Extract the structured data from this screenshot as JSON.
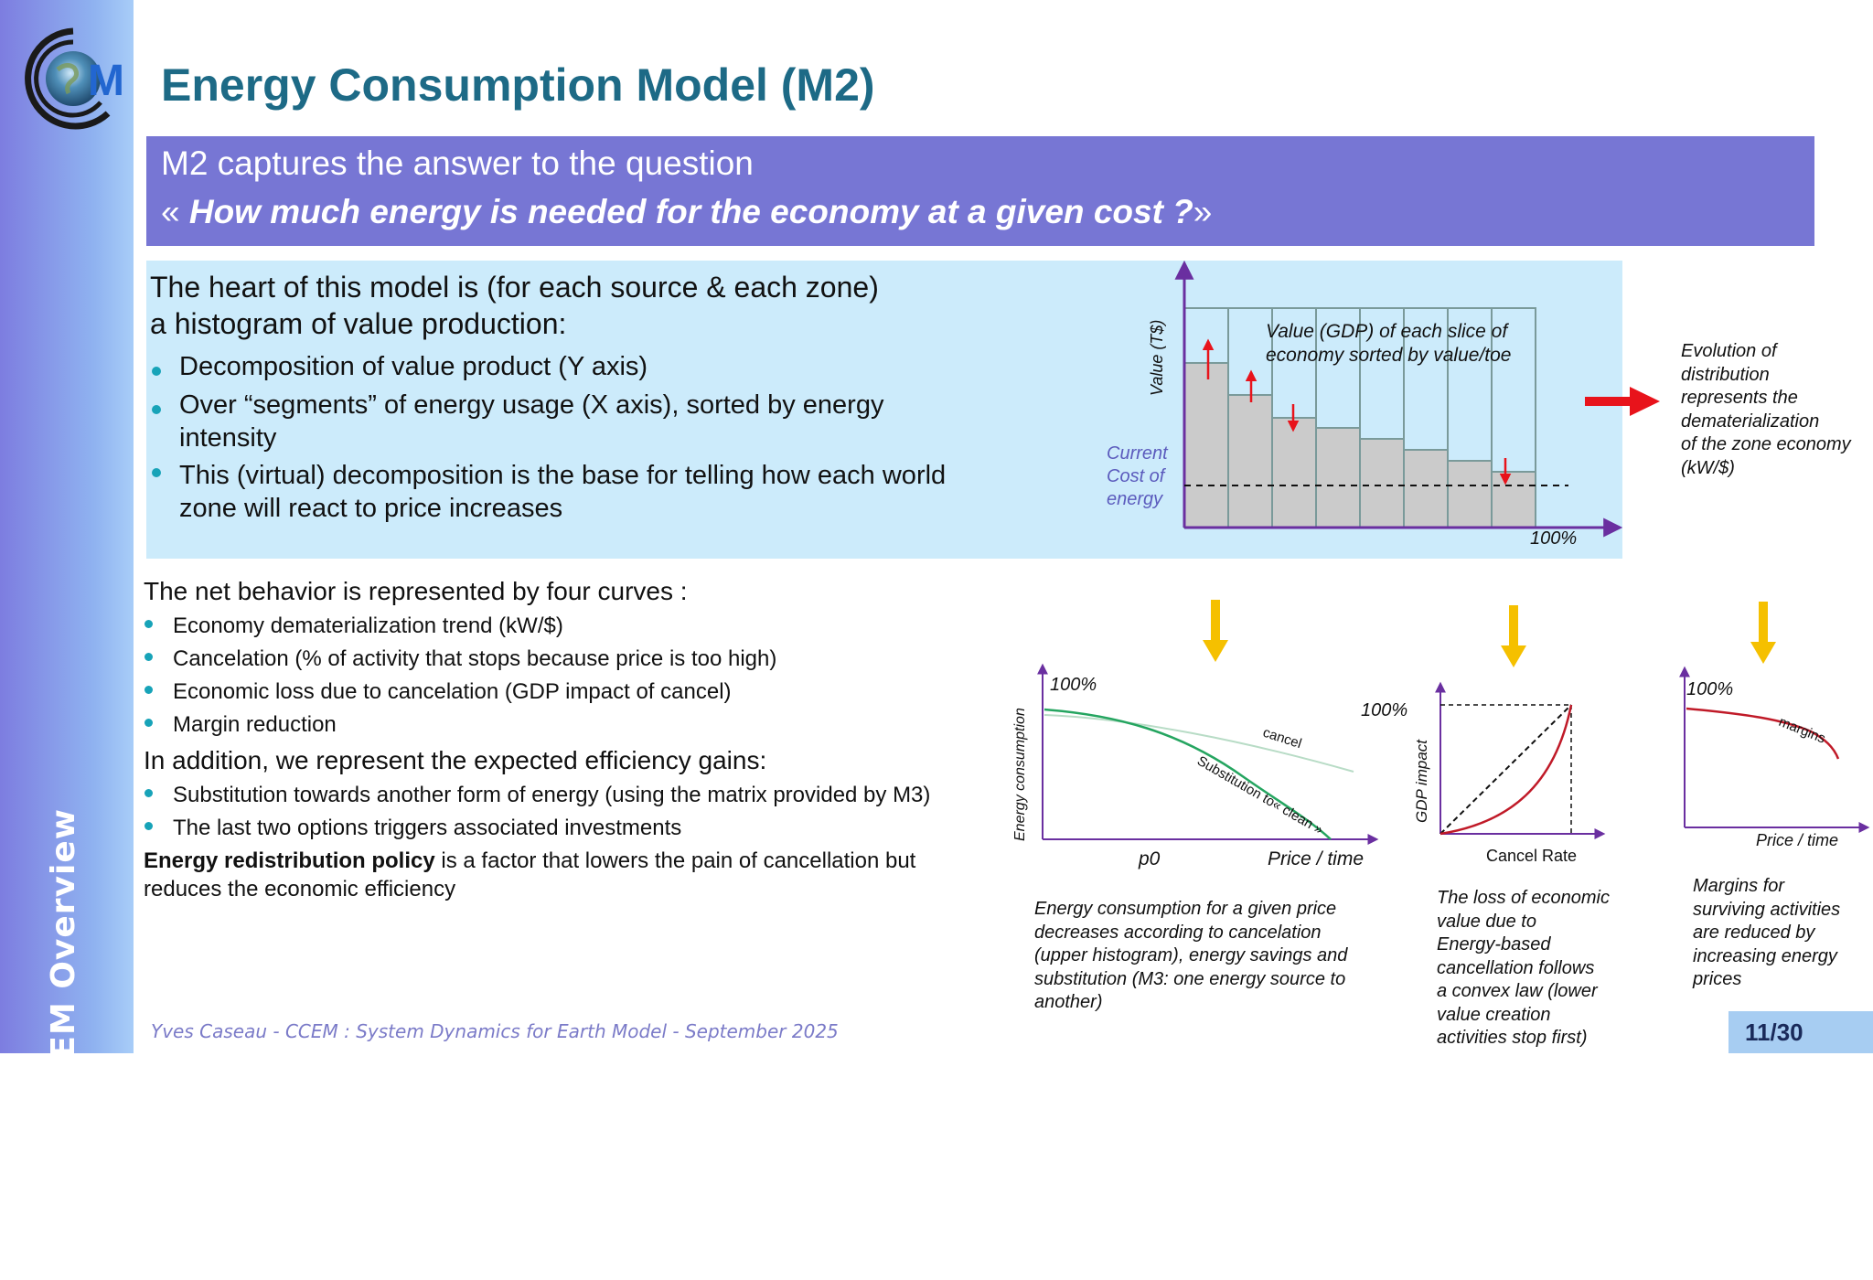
{
  "sidebar": {
    "label": "Part II  - CCEM Overview"
  },
  "logo": {
    "letter": "M"
  },
  "title": "Energy Consumption Model (M2)",
  "banner": {
    "line1": "M2 captures the answer to the question",
    "line2_open": "« ",
    "line2_question": "How much energy is needed for the economy at a given cost ?",
    "line2_close": "»"
  },
  "heart": {
    "line1": "The heart of this model is (for each source & each zone)",
    "line2": "a histogram of value production:",
    "bullets": [
      "Decomposition of value product (Y axis)",
      "Over “segments” of energy usage (X axis), sorted by energy",
      "intensity",
      "This (virtual) decomposition is the base for telling how each world",
      "zone will react to price increases"
    ]
  },
  "histogram": {
    "ylabel": "Value (T$)",
    "annotation_l1": "Value (GDP) of each slice of",
    "annotation_l2": "economy sorted by value/toe",
    "cost_l1": "Current",
    "cost_l2": "Cost of",
    "cost_l3": "energy",
    "x_end": "100%"
  },
  "evolution": [
    "Evolution of",
    "distribution",
    "represents the",
    "dematerialization",
    "of the zone economy",
    "(kW/$)"
  ],
  "net": {
    "heading": "The net behavior is represented by four curves :",
    "bullets": [
      "Economy dematerialization trend (kW/$)",
      "Cancelation (% of activity that stops because price is too high)",
      "Economic loss due to cancelation (GDP impact of cancel)",
      "Margin reduction"
    ]
  },
  "addition": {
    "heading": "In addition, we represent the expected efficiency gains:",
    "bullets": [
      "Substitution towards another form of energy (using the matrix provided by M3)",
      "The last two options triggers associated investments"
    ]
  },
  "policy": {
    "bold": "Energy redistribution policy",
    "rest": " is a factor that lowers the pain of cancellation but",
    "line2": "reduces the economic efficiency"
  },
  "chart1": {
    "ylabel": "Energy consumption",
    "top": "100%",
    "cancel": "cancel",
    "substitution": "Substitution  to« clean »",
    "p0": "p0",
    "xlabel": "Price / time",
    "caption": [
      "Energy consumption for a given price",
      "decreases according to cancelation",
      "(upper histogram), energy savings and",
      "substitution (M3: one energy source to",
      "another)"
    ]
  },
  "chart2": {
    "ylabel": "GDP impact",
    "top": "100%",
    "xlabel": "Cancel Rate",
    "caption": [
      "The loss of economic",
      "value due to",
      "Energy-based",
      "cancellation follows",
      "a convex law (lower",
      "value creation",
      "activities stop first)"
    ]
  },
  "chart3": {
    "top": "100%",
    "margins": "margins",
    "xlabel": "Price / time",
    "caption": [
      "Margins for",
      "surviving activities",
      "are reduced by",
      "increasing energy",
      "prices"
    ]
  },
  "footer": "Yves Caseau  - CCEM : System Dynamics for Earth Model - September 2025",
  "page": "11/30",
  "colors": {
    "title": "#1d6a86",
    "banner": "#7776d4",
    "heart_box": "#ccebfb",
    "bullet": "#17a3b8",
    "arrow_yellow": "#f5c000",
    "arrow_red": "#e8131b",
    "axis": "#6a2fa0"
  }
}
